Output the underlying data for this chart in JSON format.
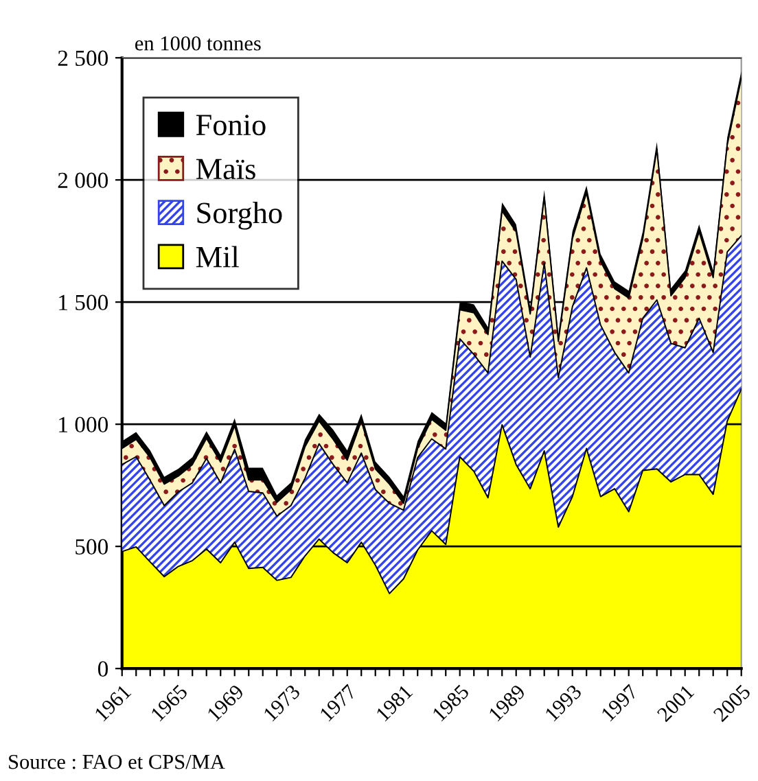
{
  "chart_data": {
    "type": "area",
    "stacked": true,
    "ylabel": "en 1000 tonnes",
    "categories": [
      "1961",
      null,
      null,
      null,
      "1965",
      null,
      null,
      null,
      "1969",
      null,
      null,
      null,
      "1973",
      null,
      null,
      null,
      "1977",
      null,
      null,
      null,
      "1981",
      null,
      null,
      null,
      "1985",
      null,
      null,
      null,
      "1989",
      null,
      null,
      null,
      "1993",
      null,
      null,
      null,
      "1997",
      null,
      null,
      null,
      "2001",
      null,
      null,
      null,
      "2005"
    ],
    "series": [
      {
        "name": "Mil",
        "color": "#ffff00",
        "values": [
          479,
          498,
          436,
          376,
          418,
          442,
          489,
          433,
          517,
          410,
          414,
          361,
          373,
          461,
          530,
          474,
          433,
          517,
          423,
          307,
          367,
          485,
          564,
          508,
          867,
          807,
          699,
          998,
          835,
          736,
          891,
          579,
          704,
          901,
          704,
          736,
          642,
          811,
          817,
          764,
          794,
          794,
          713,
          1013,
          1144
        ]
      },
      {
        "name": "Sorgho",
        "color": "#3344ee",
        "values": [
          356,
          369,
          334,
          291,
          305,
          318,
          371,
          327,
          380,
          315,
          305,
          263,
          294,
          318,
          390,
          361,
          327,
          365,
          309,
          369,
          281,
          378,
          376,
          391,
          483,
          478,
          511,
          670,
          758,
          539,
          768,
          612,
          777,
          739,
          702,
          558,
          568,
          623,
          692,
          567,
          519,
          640,
          581,
          692,
          628
        ]
      },
      {
        "name": "Maïs",
        "color": "#8b1a1a",
        "values": [
          66,
          71,
          93,
          88,
          65,
          75,
          82,
          85,
          97,
          47,
          53,
          56,
          65,
          129,
          93,
          103,
          93,
          131,
          85,
          79,
          28,
          38,
          80,
          76,
          119,
          171,
          157,
          205,
          195,
          176,
          270,
          148,
          279,
          307,
          261,
          261,
          307,
          326,
          617,
          195,
          287,
          354,
          306,
          439,
          644
        ]
      },
      {
        "name": "Fonio",
        "color": "#000000",
        "values": [
          30,
          30,
          30,
          30,
          30,
          30,
          30,
          30,
          30,
          50,
          50,
          30,
          30,
          30,
          30,
          40,
          40,
          30,
          30,
          30,
          30,
          30,
          30,
          30,
          35,
          35,
          30,
          35,
          30,
          30,
          30,
          30,
          30,
          30,
          30,
          30,
          30,
          30,
          30,
          30,
          30,
          30,
          30,
          30,
          30
        ]
      }
    ],
    "ylim": [
      0,
      2500
    ],
    "yticks": [
      0,
      500,
      {
        "value": 1000,
        "label": "1 000"
      },
      {
        "value": 1500,
        "label": "1 500"
      },
      {
        "value": 2000,
        "label": "2 000"
      },
      {
        "value": 2500,
        "label": "2 500"
      }
    ],
    "grid": "y",
    "legend": "top left",
    "annotations": [
      "Source : FAO et CPS/MA"
    ]
  }
}
